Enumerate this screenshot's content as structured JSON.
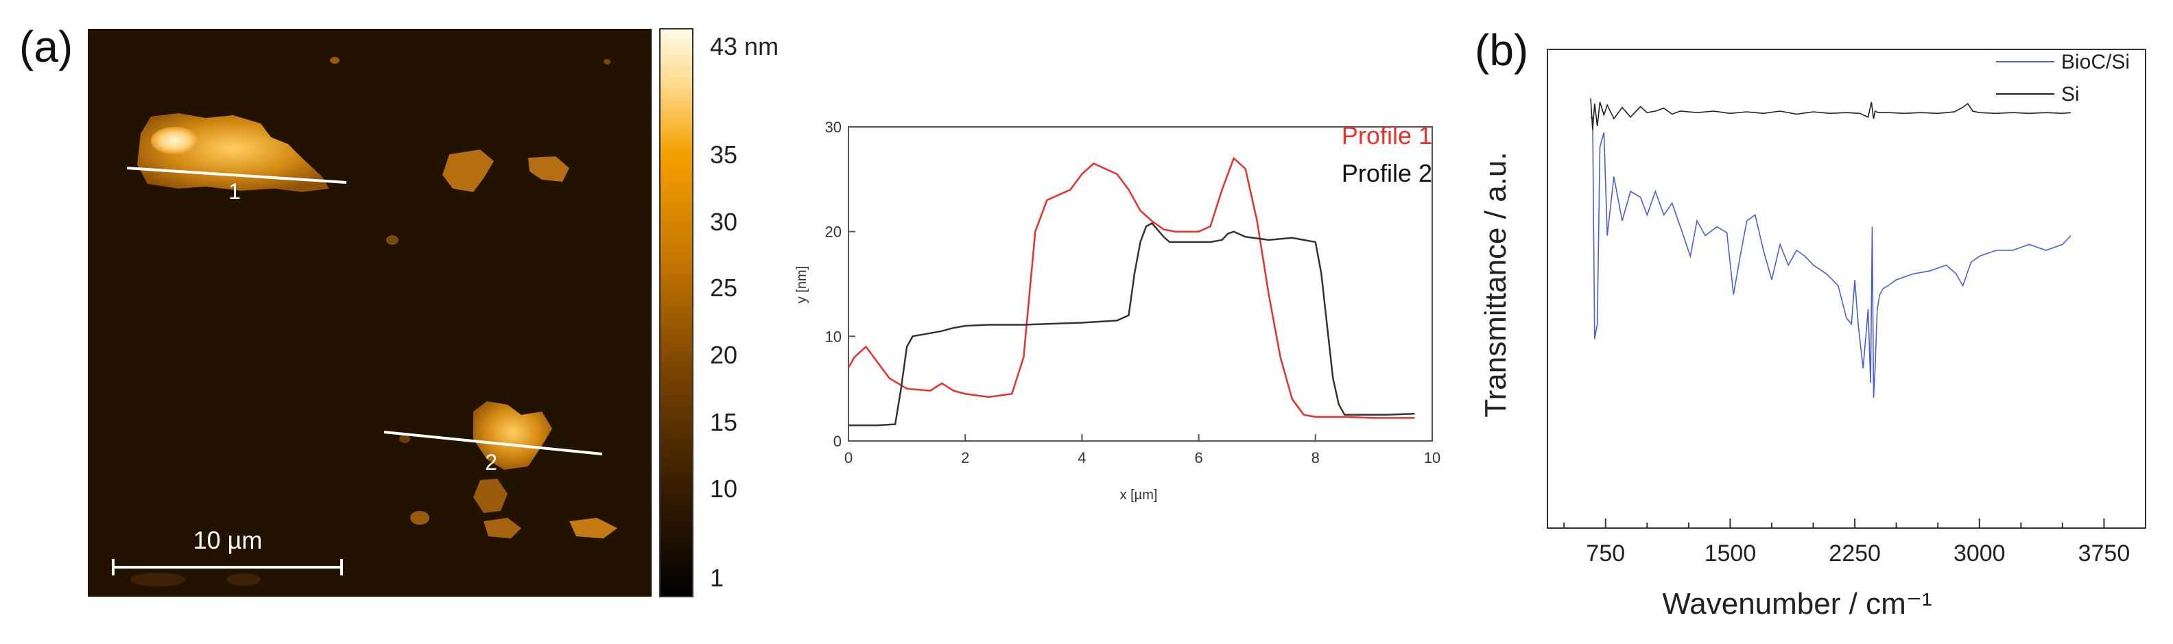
{
  "panel_a": {
    "label": "(a)",
    "afm": {
      "scalebar_label": "10 µm",
      "line_labels": [
        "1",
        "2"
      ],
      "colorbar": {
        "top_label": "43 nm",
        "tick_labels": [
          "35",
          "30",
          "25",
          "20",
          "15",
          "10",
          "1"
        ],
        "colors": [
          "#000000",
          "#3a1e00",
          "#7a4400",
          "#c97800",
          "#f5a000",
          "#ffd98a",
          "#fffbe6"
        ]
      },
      "colors": {
        "background": "#221200",
        "feature": "#c47a10",
        "highlight": "#ffe6a0"
      }
    }
  },
  "panel_b": {
    "label": "(b)"
  },
  "chart_data": [
    {
      "type": "line",
      "title": "",
      "xlabel": "x [µm]",
      "ylabel": "y [nm]",
      "xlim": [
        0,
        10
      ],
      "ylim": [
        0,
        30
      ],
      "x_ticks": [
        0,
        2,
        4,
        6,
        8,
        10
      ],
      "y_ticks": [
        0,
        10,
        20,
        30
      ],
      "grid": false,
      "legend_position": "top-right",
      "series": [
        {
          "name": "Profile 1",
          "color": "#e8302c",
          "x": [
            0,
            0.1,
            0.3,
            0.5,
            0.7,
            1.0,
            1.4,
            1.6,
            1.8,
            2.0,
            2.4,
            2.8,
            3.0,
            3.2,
            3.4,
            3.6,
            3.8,
            4.0,
            4.2,
            4.4,
            4.6,
            4.8,
            5.0,
            5.2,
            5.4,
            5.6,
            5.8,
            6.0,
            6.2,
            6.4,
            6.6,
            6.8,
            7.0,
            7.2,
            7.4,
            7.6,
            7.8,
            8.0,
            8.5,
            9.0,
            9.5,
            9.7
          ],
          "y": [
            7,
            8,
            9,
            7.5,
            6,
            5,
            4.8,
            5.5,
            4.8,
            4.5,
            4.2,
            4.5,
            8,
            20,
            23,
            23.5,
            24,
            25.5,
            26.5,
            26,
            25.5,
            24,
            22,
            21,
            20.2,
            20,
            20,
            20,
            20.5,
            24,
            27,
            26,
            21,
            14,
            8,
            4,
            2.5,
            2.3,
            2.3,
            2.2,
            2.2,
            2.2
          ]
        },
        {
          "name": "Profile 2",
          "color": "#333333",
          "x": [
            0,
            0.5,
            0.8,
            0.9,
            1.0,
            1.1,
            1.3,
            1.6,
            1.8,
            2.0,
            2.4,
            3.0,
            4.0,
            4.6,
            4.8,
            4.9,
            5.0,
            5.1,
            5.2,
            5.4,
            5.5,
            5.8,
            6.2,
            6.4,
            6.5,
            6.6,
            6.8,
            7.2,
            7.6,
            7.8,
            8.0,
            8.1,
            8.2,
            8.3,
            8.4,
            8.5,
            8.6,
            8.8,
            9.2,
            9.7
          ],
          "y": [
            1.5,
            1.5,
            1.6,
            5,
            9,
            10,
            10.2,
            10.5,
            10.8,
            11,
            11.1,
            11.1,
            11.3,
            11.5,
            12,
            16,
            19,
            20.5,
            20.8,
            19.5,
            19,
            19,
            19,
            19.2,
            19.8,
            20,
            19.5,
            19.2,
            19.4,
            19.2,
            19,
            16,
            11,
            6,
            3.5,
            2.5,
            2.5,
            2.5,
            2.5,
            2.6
          ]
        }
      ]
    },
    {
      "type": "line",
      "title": "",
      "xlabel": "Wavenumber / cm⁻¹",
      "ylabel": "Transmittance / a.u.",
      "xlim": [
        400,
        4000
      ],
      "x_ticks": [
        750,
        1500,
        2250,
        3000,
        3750
      ],
      "y_units": "arbitrary (0-1 normalized)",
      "grid": false,
      "legend_position": "top-right",
      "series": [
        {
          "name": "BioC/Si",
          "color": "#4b5fd1",
          "x": [
            660,
            672,
            684,
            700,
            716,
            740,
            760,
            800,
            850,
            900,
            960,
            1000,
            1050,
            1100,
            1150,
            1200,
            1260,
            1300,
            1350,
            1420,
            1480,
            1520,
            1560,
            1600,
            1650,
            1700,
            1750,
            1800,
            1850,
            1900,
            1950,
            2000,
            2080,
            2150,
            2200,
            2230,
            2250,
            2270,
            2300,
            2330,
            2345,
            2355,
            2363,
            2372,
            2385,
            2400,
            2420,
            2450,
            2500,
            2600,
            2700,
            2800,
            2860,
            2900,
            2950,
            3000,
            3100,
            3200,
            3300,
            3400,
            3500,
            3550
          ],
          "y": [
            0.95,
            0.95,
            0.2,
            0.25,
            0.85,
            0.9,
            0.55,
            0.75,
            0.6,
            0.7,
            0.68,
            0.62,
            0.7,
            0.62,
            0.66,
            0.58,
            0.48,
            0.6,
            0.55,
            0.58,
            0.56,
            0.35,
            0.48,
            0.6,
            0.62,
            0.5,
            0.4,
            0.52,
            0.45,
            0.5,
            0.48,
            0.45,
            0.42,
            0.38,
            0.27,
            0.25,
            0.4,
            0.25,
            0.1,
            0.3,
            0.05,
            0.58,
            0.0,
            0.1,
            0.3,
            0.35,
            0.37,
            0.38,
            0.4,
            0.42,
            0.43,
            0.45,
            0.42,
            0.38,
            0.46,
            0.48,
            0.5,
            0.5,
            0.52,
            0.5,
            0.52,
            0.55
          ]
        },
        {
          "name": "Si",
          "color": "#222222",
          "x": [
            660,
            672,
            684,
            700,
            716,
            740,
            760,
            800,
            850,
            900,
            960,
            1000,
            1050,
            1100,
            1150,
            1200,
            1300,
            1400,
            1500,
            1600,
            1700,
            1800,
            1900,
            2000,
            2100,
            2200,
            2280,
            2330,
            2350,
            2363,
            2372,
            2390,
            2450,
            2550,
            2650,
            2750,
            2850,
            2900,
            2930,
            2960,
            3000,
            3100,
            3200,
            3300,
            3400,
            3500,
            3550
          ],
          "y": [
            0.97,
            0.55,
            0.9,
            0.6,
            0.92,
            0.75,
            0.88,
            0.7,
            0.85,
            0.72,
            0.86,
            0.78,
            0.8,
            0.84,
            0.76,
            0.8,
            0.78,
            0.8,
            0.77,
            0.79,
            0.77,
            0.8,
            0.76,
            0.79,
            0.77,
            0.78,
            0.77,
            0.72,
            0.92,
            0.7,
            0.8,
            0.78,
            0.78,
            0.77,
            0.78,
            0.77,
            0.79,
            0.85,
            0.9,
            0.8,
            0.78,
            0.77,
            0.78,
            0.77,
            0.78,
            0.77,
            0.78
          ]
        }
      ]
    }
  ]
}
